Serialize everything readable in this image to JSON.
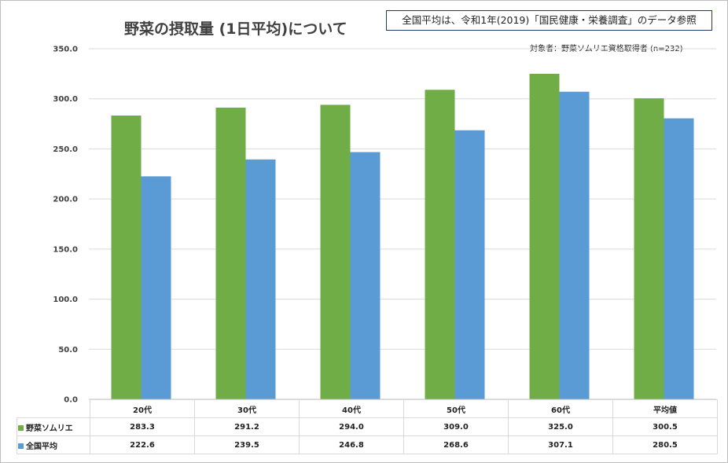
{
  "chart_data": {
    "type": "bar",
    "title": "野菜の摂取量 (1日平均)について",
    "note": "全国平均は、令和1年(2019)「国民健康・栄養調査」のデータ参照",
    "subject": "対象者：野菜ソムリエ資格取得者 (n=232)",
    "categories": [
      "20代",
      "30代",
      "40代",
      "50代",
      "60代",
      "平均値"
    ],
    "series": [
      {
        "name": "野菜ソムリエ",
        "color": "#70ad47",
        "values": [
          283.3,
          291.2,
          294.0,
          309.0,
          325.0,
          300.5
        ],
        "labels": [
          "283.3",
          "291.2",
          "294.0",
          "309.0",
          "325.0",
          "300.5"
        ]
      },
      {
        "name": "全国平均",
        "color": "#5b9bd5",
        "values": [
          222.6,
          239.5,
          246.8,
          268.6,
          307.1,
          280.5
        ],
        "labels": [
          "222.6",
          "239.5",
          "246.8",
          "268.6",
          "307.1",
          "280.5"
        ]
      }
    ],
    "ylim": [
      0,
      350
    ],
    "yticks": [
      "0.0",
      "50.0",
      "100.0",
      "150.0",
      "200.0",
      "250.0",
      "300.0",
      "350.0"
    ],
    "grid": true,
    "xlabel": "",
    "ylabel": ""
  }
}
